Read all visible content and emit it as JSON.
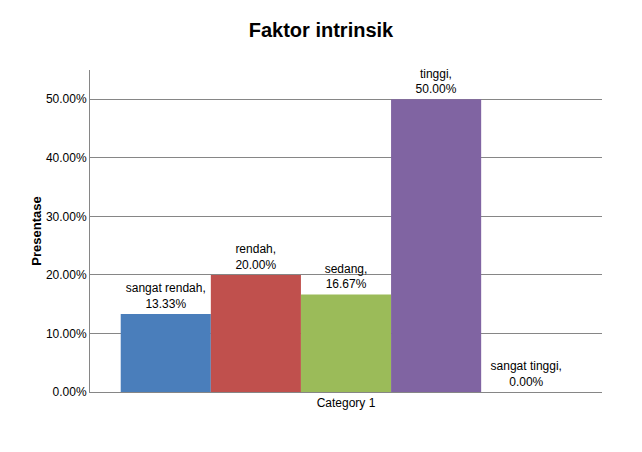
{
  "chart_data": {
    "type": "bar",
    "title": "Faktor intrinsik",
    "y_label": "Presentase",
    "categories": [
      "Category 1"
    ],
    "series": [
      {
        "name": "sangat rendah",
        "color": "#4a7ebb",
        "values": [
          13.33
        ],
        "value_labels": [
          "sangat rendah, 13.33%"
        ]
      },
      {
        "name": "rendah",
        "color": "#c0504d",
        "values": [
          20.0
        ],
        "value_labels": [
          "rendah, 20.00%"
        ]
      },
      {
        "name": "sedang",
        "color": "#9bbb59",
        "values": [
          16.67
        ],
        "value_labels": [
          "sedang, 16.67%"
        ]
      },
      {
        "name": "tinggi",
        "color": "#8064a2",
        "values": [
          50.0
        ],
        "value_labels": [
          "tinggi, 50.00%"
        ]
      },
      {
        "name": "sangat tinggi",
        "color": "#4bacc6",
        "values": [
          0.0
        ],
        "value_labels": [
          "sangat tinggi, 0.00%"
        ]
      }
    ],
    "ylim": [
      0,
      55
    ],
    "yticks": [
      {
        "value": 0,
        "label": "0.00%"
      },
      {
        "value": 10,
        "label": "10.00%"
      },
      {
        "value": 20,
        "label": "20.00%"
      },
      {
        "value": 30,
        "label": "30.00%"
      },
      {
        "value": 40,
        "label": "40.00%"
      },
      {
        "value": 50,
        "label": "50.00%"
      }
    ],
    "grid": true,
    "data_labels": true
  }
}
